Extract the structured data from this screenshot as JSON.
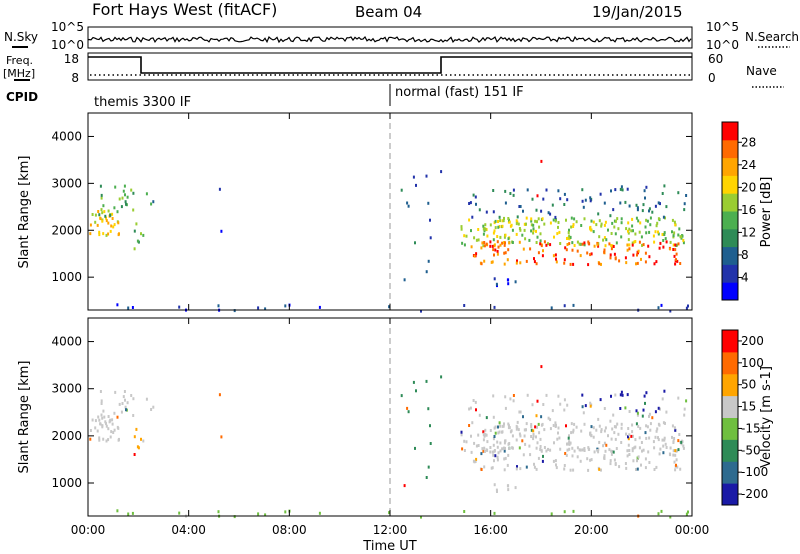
{
  "header": {
    "station": "Fort Hays West (fitACF)",
    "beam": "Beam 04",
    "date": "19/Jan/2015"
  },
  "strip": {
    "nsky_label": "N.Sky",
    "nsky_ticks": [
      "10^5",
      "10^0"
    ],
    "nsearch_label": "N.Search",
    "nsearch_ticks": [
      "10^5",
      "10^0"
    ],
    "freq_label": [
      "Freq.",
      "[MHz]"
    ],
    "freq_ticks": [
      "18",
      "8"
    ],
    "nave_label": "Nave",
    "nave_ticks": [
      "60",
      "0"
    ],
    "cpid_label": "CPID",
    "cpid_segments": [
      {
        "label": "themis 3300 IF",
        "start_hour": 0
      },
      {
        "label": "normal (fast) 151 IF",
        "start_hour": 12
      }
    ]
  },
  "chart_data": [
    {
      "type": "heatmap",
      "title": "",
      "xlabel": "",
      "ylabel": "Slant Range [km]",
      "xlim": [
        0,
        24
      ],
      "ylim": [
        300,
        4500
      ],
      "yticks": [
        "1000",
        "2000",
        "3000",
        "4000"
      ],
      "colorbar": {
        "label": "Power [dB]",
        "ticks": [
          "28",
          "24",
          "20",
          "16",
          "12",
          "8",
          "4"
        ],
        "range": [
          0,
          30
        ]
      },
      "colors": [
        "#0000ff",
        "#2233aa",
        "#1f5f8f",
        "#2e8b57",
        "#4caf50",
        "#9acd32",
        "#ffd400",
        "#ffa500",
        "#ff6a00",
        "#ff0000"
      ]
    },
    {
      "type": "heatmap",
      "title": "",
      "xlabel": "Time UT",
      "ylabel": "Slant Range [km]",
      "xlim": [
        0,
        24
      ],
      "ylim": [
        300,
        4500
      ],
      "xticks": [
        "00:00",
        "04:00",
        "08:00",
        "12:00",
        "16:00",
        "20:00",
        "00:00"
      ],
      "yticks": [
        "1000",
        "2000",
        "3000",
        "4000"
      ],
      "colorbar": {
        "label": "Velocity [m s-1]",
        "ticks": [
          "200",
          "100",
          "50",
          "15",
          "-15",
          "-50",
          "-100",
          "-200"
        ]
      },
      "colors": [
        "#1a1aa6",
        "#2e6b8f",
        "#2e8b57",
        "#6fbf3f",
        "#c8c8c8",
        "#ffa500",
        "#ff6a00",
        "#ff0000"
      ]
    }
  ]
}
